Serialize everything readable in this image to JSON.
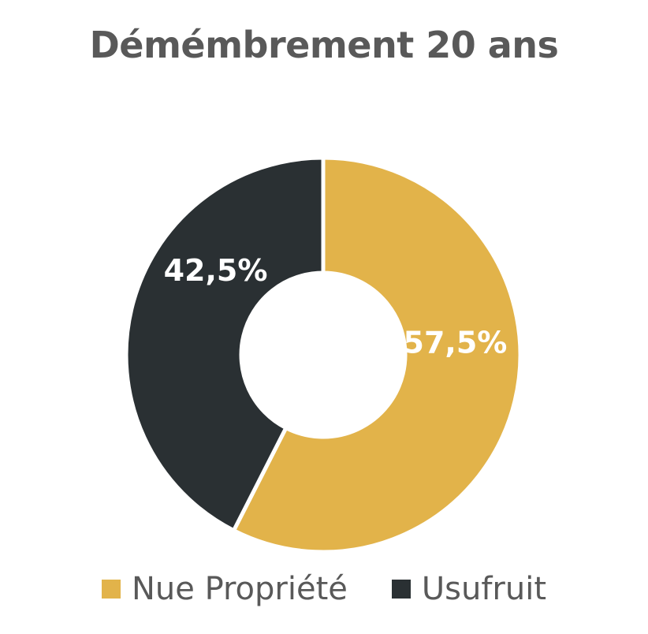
{
  "chart_data": {
    "type": "pie",
    "subtype": "donut",
    "title": "Démémbrement 20 ans",
    "categories": [
      "Nue Propriété",
      "Usufruit"
    ],
    "values": [
      57.5,
      42.5
    ],
    "data_labels": [
      "57,5%",
      "42,5%"
    ],
    "colors": [
      "#E2B34A",
      "#2A3033"
    ],
    "legend_position": "bottom",
    "start_angle_deg": 0,
    "direction": "clockwise"
  }
}
